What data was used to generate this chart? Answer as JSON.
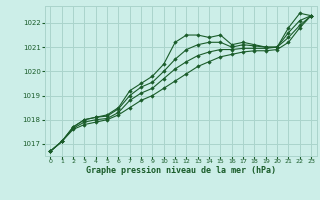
{
  "bg_color": "#cceee8",
  "grid_color": "#aad4cc",
  "line_color": "#1a5c2a",
  "marker_color": "#1a5c2a",
  "xlabel": "Graphe pression niveau de la mer (hPa)",
  "xlabel_color": "#1a5c2a",
  "ylabel_color": "#1a5c2a",
  "xlim": [
    -0.5,
    23.5
  ],
  "ylim": [
    1016.5,
    1022.7
  ],
  "yticks": [
    1017,
    1018,
    1019,
    1020,
    1021,
    1022
  ],
  "xticks": [
    0,
    1,
    2,
    3,
    4,
    5,
    6,
    7,
    8,
    9,
    10,
    11,
    12,
    13,
    14,
    15,
    16,
    17,
    18,
    19,
    20,
    21,
    22,
    23
  ],
  "series": [
    [
      1016.7,
      1017.1,
      1017.7,
      1018.0,
      1018.1,
      1018.2,
      1018.5,
      1019.2,
      1019.5,
      1019.8,
      1020.3,
      1021.2,
      1021.5,
      1021.5,
      1021.4,
      1021.5,
      1021.1,
      1021.2,
      1021.1,
      1021.0,
      1021.0,
      1021.8,
      1022.4,
      1022.3
    ],
    [
      1016.7,
      1017.1,
      1017.6,
      1017.8,
      1017.9,
      1018.0,
      1018.2,
      1018.5,
      1018.8,
      1019.0,
      1019.3,
      1019.6,
      1019.9,
      1020.2,
      1020.4,
      1020.6,
      1020.7,
      1020.8,
      1020.85,
      1020.85,
      1020.9,
      1021.2,
      1021.8,
      1022.3
    ],
    [
      1016.7,
      1017.1,
      1017.65,
      1017.9,
      1018.0,
      1018.05,
      1018.3,
      1018.8,
      1019.1,
      1019.3,
      1019.7,
      1020.1,
      1020.4,
      1020.65,
      1020.8,
      1020.9,
      1020.9,
      1020.95,
      1020.95,
      1020.95,
      1021.0,
      1021.4,
      1021.9,
      1022.3
    ],
    [
      1016.7,
      1017.1,
      1017.7,
      1018.0,
      1018.1,
      1018.15,
      1018.45,
      1019.0,
      1019.35,
      1019.55,
      1020.0,
      1020.5,
      1020.9,
      1021.1,
      1021.2,
      1021.2,
      1021.0,
      1021.1,
      1021.05,
      1021.0,
      1021.0,
      1021.6,
      1022.1,
      1022.3
    ]
  ]
}
